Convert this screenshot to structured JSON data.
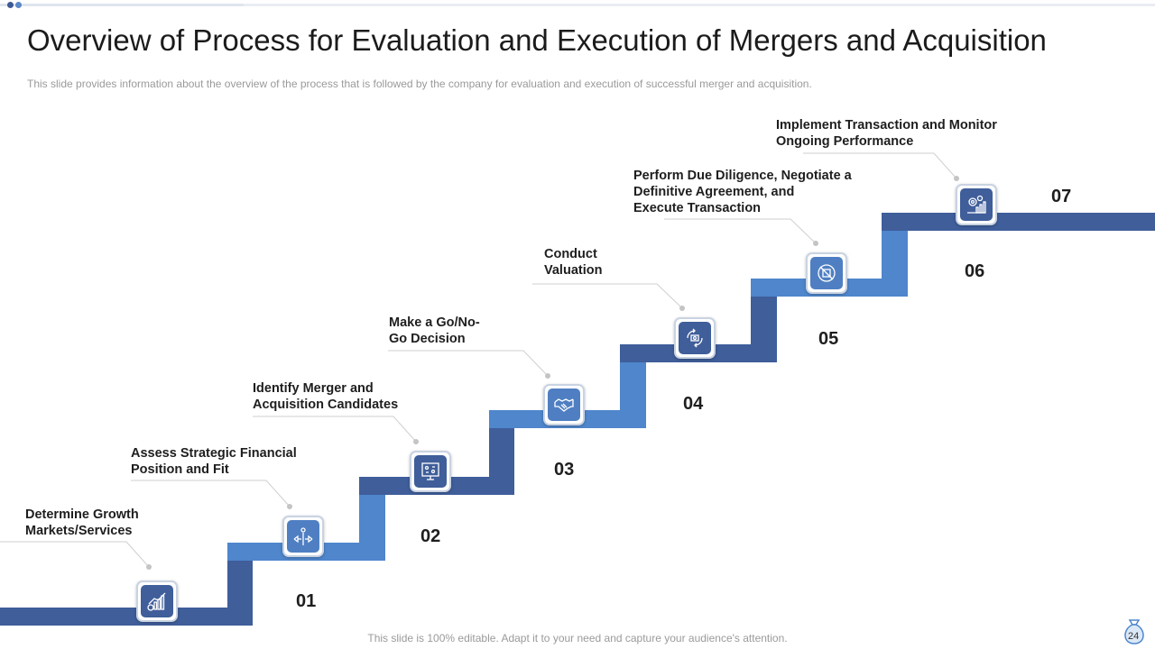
{
  "header": {
    "title": "Overview of Process for Evaluation and Execution of Mergers and Acquisition",
    "subtitle": "This slide provides  information  about the overview  of the process that is followed  by the company for evaluation  and execution of successful merger and acquisition."
  },
  "steps": [
    {
      "number": "01",
      "label": "Determine Growth\nMarkets/Services",
      "icon": "growth-chart-icon"
    },
    {
      "number": "02",
      "label": "Assess  Strategic Financial\nPosition and Fit",
      "icon": "direction-arrows-icon"
    },
    {
      "number": "03",
      "label": "Identify Merger and\nAcquisition  Candidates",
      "icon": "presentation-board-icon"
    },
    {
      "number": "04",
      "label": "Make a Go/No-\nGo Decision",
      "icon": "handshake-icon"
    },
    {
      "number": "05",
      "label": "Conduct\nValuation",
      "icon": "money-cycle-icon"
    },
    {
      "number": "06",
      "label": "Perform Due Diligence, Negotiate a\nDefinitive Agreement, and\nExecute Transaction",
      "icon": "no-deal-icon"
    },
    {
      "number": "07",
      "label": "Implement Transaction and Monitor\nOngoing Performance",
      "icon": "gear-chart-icon"
    }
  ],
  "footer": {
    "text": "This slide is 100% editable. Adapt it to your need and capture your audience's attention.",
    "page_number": "24"
  },
  "colors": {
    "dark_blue": "#3f5e9a",
    "light_blue": "#4f86cc"
  }
}
